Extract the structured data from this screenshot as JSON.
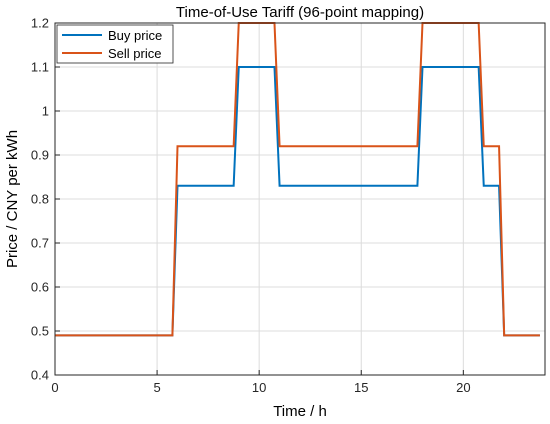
{
  "chart_data": {
    "type": "line",
    "title": "Time-of-Use Tariff (96-point mapping)",
    "xlabel": "Time / h",
    "ylabel": "Price / CNY per kWh",
    "xlim": [
      0,
      24
    ],
    "ylim": [
      0.4,
      1.2
    ],
    "xticks": [
      "0",
      "5",
      "10",
      "15",
      "20"
    ],
    "yticks": [
      "0.4",
      "0.5",
      "0.6",
      "0.7",
      "0.8",
      "0.9",
      "1",
      "1.1",
      "1.2"
    ],
    "grid": true,
    "legend": "top-left",
    "series": [
      {
        "name": "Buy price",
        "color": "#0072bd",
        "x": [
          0,
          5.75,
          6.0,
          8.75,
          9.0,
          10.75,
          11.0,
          17.75,
          18.0,
          20.75,
          21.0,
          21.75,
          22.0,
          23.75
        ],
        "y": [
          0.49,
          0.49,
          0.83,
          0.83,
          1.1,
          1.1,
          0.83,
          0.83,
          1.1,
          1.1,
          0.83,
          0.83,
          0.49,
          0.49
        ]
      },
      {
        "name": "Sell price",
        "color": "#d95319",
        "x": [
          0,
          5.75,
          6.0,
          8.75,
          9.0,
          10.75,
          11.0,
          17.75,
          18.0,
          20.75,
          21.0,
          21.75,
          22.0,
          23.75
        ],
        "y": [
          0.49,
          0.49,
          0.92,
          0.92,
          1.2,
          1.2,
          0.92,
          0.92,
          1.2,
          1.2,
          0.92,
          0.92,
          0.49,
          0.49
        ]
      }
    ]
  }
}
